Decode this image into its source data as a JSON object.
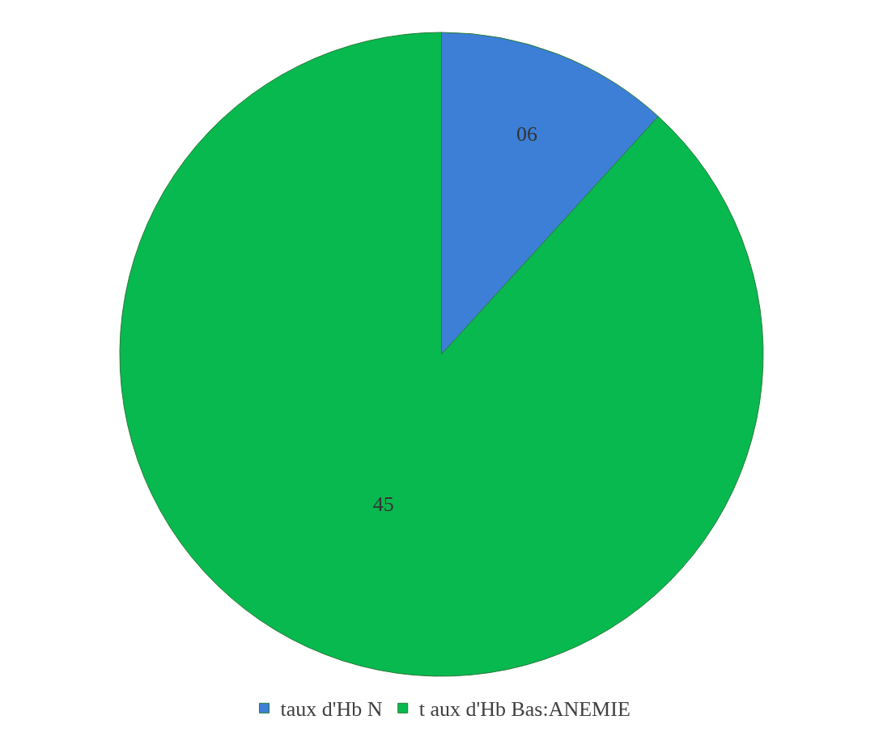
{
  "chart_data": {
    "type": "pie",
    "categories": [
      "taux d'Hb N",
      "t aux d'Hb Bas:ANEMIE"
    ],
    "values": [
      6,
      45
    ],
    "value_labels": [
      "06",
      "45"
    ],
    "colors": [
      "#3d7fd6",
      "#08b94f"
    ],
    "legend": "bottom"
  }
}
